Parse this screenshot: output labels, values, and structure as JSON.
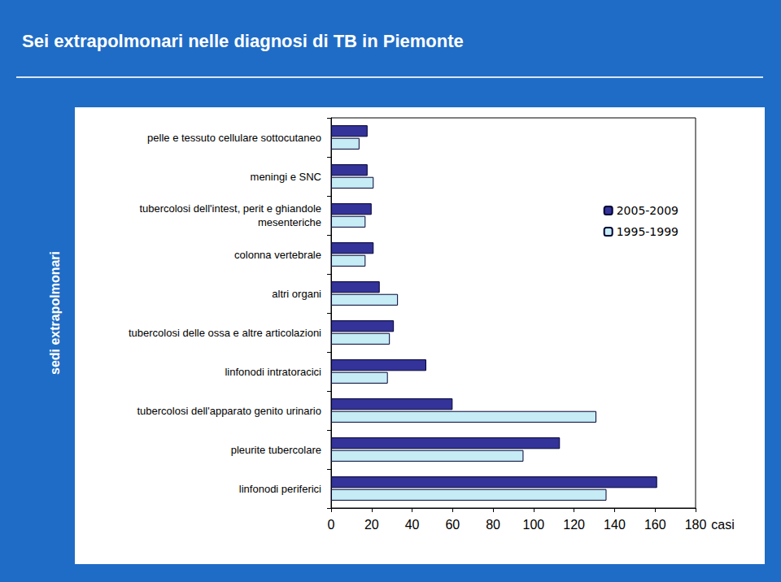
{
  "chart_data": {
    "type": "bar",
    "title": "Sei extrapolmonari nelle diagnosi di TB in Piemonte",
    "ylabel": "sedi extrapolmonari",
    "xlabel": "casi",
    "orientation": "horizontal",
    "categories": [
      "pelle e tessuto cellulare sottocutaneo",
      "meningi e SNC",
      "tubercolosi dell'intest, perit e ghiandole\nmesenteriche",
      "colonna vertebrale",
      "altri organi",
      "tubercolosi delle ossa e altre articolazioni",
      "linfonodi intratoracici",
      "tubercolosi dell'apparato genito urinario",
      "pleurite tubercolare",
      "linfonodi periferici"
    ],
    "series": [
      {
        "name": "2005-2009",
        "color": "#333399",
        "values": [
          18,
          18,
          20,
          21,
          24,
          31,
          47,
          60,
          113,
          161
        ]
      },
      {
        "name": "1995-1999",
        "color": "#c6ecf5",
        "values": [
          14,
          21,
          17,
          17,
          33,
          29,
          28,
          131,
          95,
          136
        ]
      }
    ],
    "xlim": [
      0,
      180
    ],
    "xticks": [
      0,
      20,
      40,
      60,
      80,
      100,
      120,
      140,
      160,
      180
    ],
    "grid": false,
    "legend": "upper right"
  }
}
